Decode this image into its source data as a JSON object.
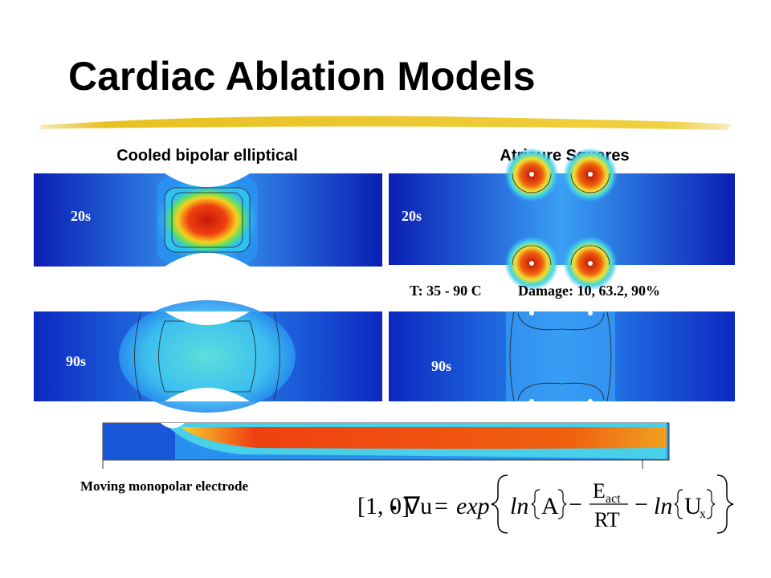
{
  "header": {
    "title": "Cardiac Ablation Models"
  },
  "panels": [
    {
      "heading": "Cooled bipolar elliptical",
      "times": [
        "20s",
        "90s"
      ]
    },
    {
      "heading": "Atricure Squares",
      "times": [
        "20s",
        "90s"
      ]
    }
  ],
  "legend": {
    "temperature": "T: 35 - 90 C",
    "damage": "Damage: 10, 63.2, 90%"
  },
  "bottom": {
    "caption": "Moving monopolar electrode"
  },
  "equation": {
    "lhs": "[1, 0]",
    "dot": "•",
    "grad": "∇u",
    "equals": "=",
    "func": "exp",
    "ln": "ln",
    "arg1": "A",
    "minus": "−",
    "numerator": "E",
    "numerator_sub": "act",
    "denominator": "RT",
    "arg2": "U",
    "arg2_sub": "x"
  }
}
